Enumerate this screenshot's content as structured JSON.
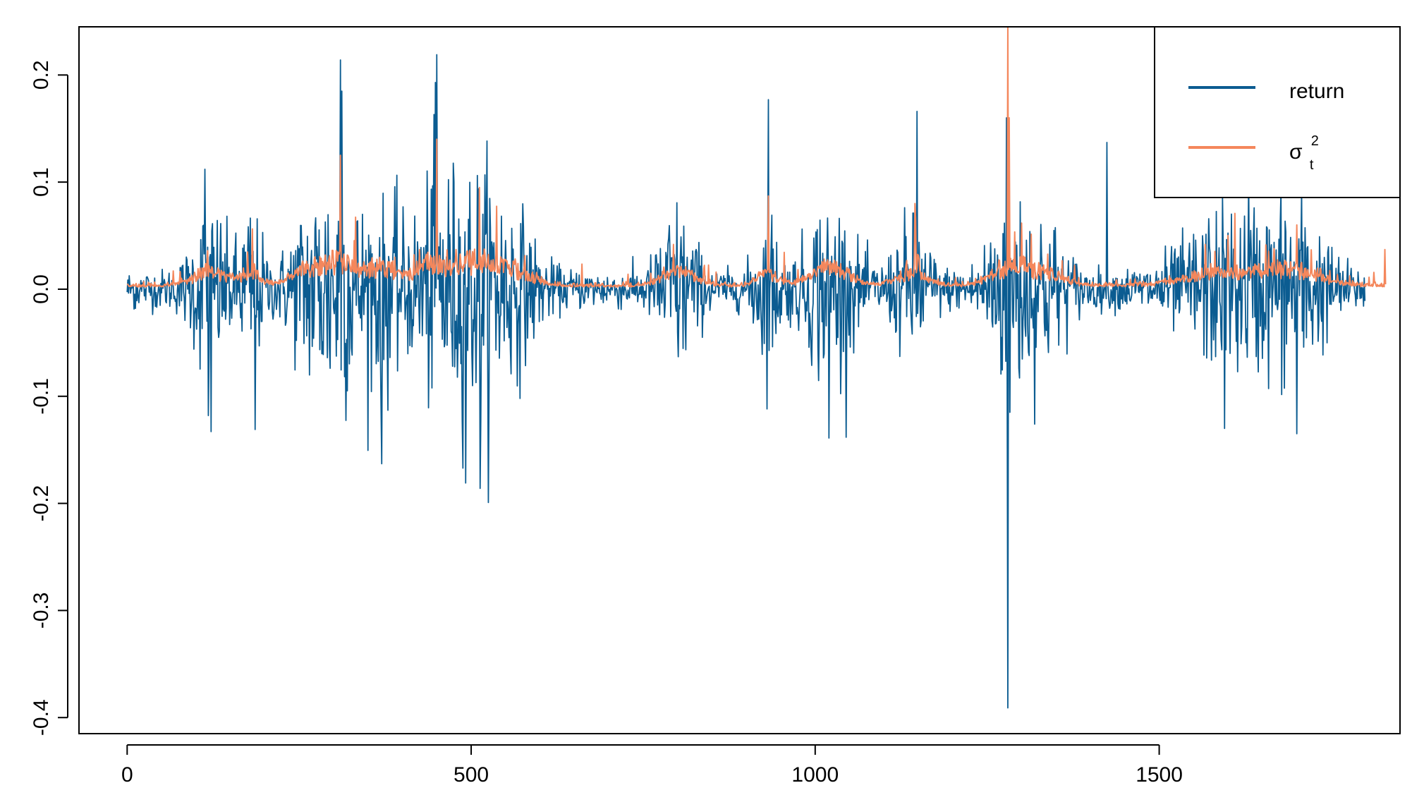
{
  "chart_data": {
    "type": "line",
    "title": "",
    "xlabel": "",
    "ylabel": "",
    "xlim": [
      -70,
      1850
    ],
    "ylim": [
      -0.415,
      0.245
    ],
    "x_ticks": [
      0,
      500,
      1000,
      1500
    ],
    "x_tick_labels": [
      "0",
      "500",
      "1000",
      "1500"
    ],
    "y_ticks": [
      -0.4,
      -0.3,
      -0.2,
      -0.1,
      0.0,
      0.1,
      0.2
    ],
    "y_tick_labels": [
      "-0.4",
      "-0.3",
      "-0.2",
      "-0.1",
      "0.0",
      "0.1",
      "0.2"
    ],
    "grid": false,
    "legend_position": "top-right",
    "series": [
      {
        "name": "return",
        "color": "#0b5c91",
        "n_points": 1800,
        "base_scale": 0.012,
        "volatility_clusters": [
          {
            "x": 120,
            "amp": 0.045,
            "width": 30
          },
          {
            "x": 180,
            "amp": 0.04,
            "width": 20
          },
          {
            "x": 265,
            "amp": 0.045,
            "width": 35
          },
          {
            "x": 310,
            "amp": 0.06,
            "width": 30
          },
          {
            "x": 370,
            "amp": 0.055,
            "width": 30
          },
          {
            "x": 450,
            "amp": 0.065,
            "width": 40
          },
          {
            "x": 510,
            "amp": 0.055,
            "width": 35
          },
          {
            "x": 560,
            "amp": 0.04,
            "width": 40
          },
          {
            "x": 800,
            "amp": 0.045,
            "width": 30
          },
          {
            "x": 930,
            "amp": 0.04,
            "width": 20
          },
          {
            "x": 1020,
            "amp": 0.05,
            "width": 40
          },
          {
            "x": 1140,
            "amp": 0.035,
            "width": 30
          },
          {
            "x": 1280,
            "amp": 0.05,
            "width": 35
          },
          {
            "x": 1330,
            "amp": 0.035,
            "width": 40
          },
          {
            "x": 1600,
            "amp": 0.04,
            "width": 80
          },
          {
            "x": 1700,
            "amp": 0.04,
            "width": 50
          }
        ],
        "extreme_points": [
          {
            "x": 12,
            "y": -0.018
          },
          {
            "x": 118,
            "y": -0.118
          },
          {
            "x": 122,
            "y": -0.133
          },
          {
            "x": 113,
            "y": 0.112
          },
          {
            "x": 186,
            "y": -0.131
          },
          {
            "x": 310,
            "y": 0.214
          },
          {
            "x": 312,
            "y": 0.185
          },
          {
            "x": 370,
            "y": -0.163
          },
          {
            "x": 450,
            "y": 0.219
          },
          {
            "x": 448,
            "y": 0.193
          },
          {
            "x": 492,
            "y": -0.181
          },
          {
            "x": 513,
            "y": -0.186
          },
          {
            "x": 932,
            "y": 0.177
          },
          {
            "x": 1020,
            "y": -0.139
          },
          {
            "x": 1148,
            "y": 0.166
          },
          {
            "x": 1278,
            "y": 0.16
          },
          {
            "x": 1280,
            "y": -0.391
          },
          {
            "x": 1283,
            "y": -0.115
          },
          {
            "x": 1424,
            "y": 0.137
          },
          {
            "x": 1595,
            "y": -0.13
          },
          {
            "x": 1630,
            "y": 0.105
          },
          {
            "x": 1700,
            "y": -0.135
          }
        ]
      },
      {
        "name": "σ²ₜ",
        "color": "#f4875c",
        "n_points": 1830,
        "baseline": 0.002,
        "extreme_points": [
          {
            "x": 310,
            "y": 0.125
          },
          {
            "x": 450,
            "y": 0.14
          },
          {
            "x": 512,
            "y": 0.095
          },
          {
            "x": 932,
            "y": 0.087
          },
          {
            "x": 1145,
            "y": 0.08
          },
          {
            "x": 1280,
            "y": 0.245
          },
          {
            "x": 1282,
            "y": 0.16
          },
          {
            "x": 1600,
            "y": 0.05
          },
          {
            "x": 1700,
            "y": 0.06
          },
          {
            "x": 1828,
            "y": 0.037
          }
        ]
      }
    ],
    "legend": {
      "entries": [
        {
          "label": "return",
          "color": "#0b5c91"
        },
        {
          "label_main": "σ",
          "label_sub": "t",
          "label_sup": "2",
          "color": "#f4875c"
        }
      ]
    }
  }
}
